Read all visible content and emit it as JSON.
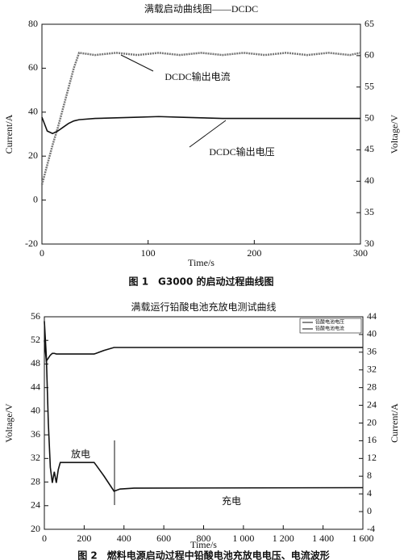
{
  "chart_data": [
    {
      "type": "line",
      "title": "满载启动曲线图——DCDC",
      "caption": "图 1　G3000 的启动过程曲线图",
      "x_label": "Time/s",
      "y_label": "Current/A",
      "y2_label": "Voltage/V",
      "x": [
        0,
        5,
        10,
        15,
        20,
        25,
        30,
        35,
        50,
        70,
        90,
        110,
        130,
        150,
        170,
        190,
        210,
        230,
        250,
        270,
        290,
        300
      ],
      "series": [
        {
          "name": "DCDC输出电流",
          "color": "#777777",
          "values": [
            7,
            16,
            25,
            33,
            42,
            51,
            60,
            67,
            66,
            67,
            66,
            67,
            66,
            67,
            66,
            67,
            66,
            67,
            66,
            67,
            66,
            67
          ]
        },
        {
          "name": "DCDC输出电压",
          "color": "#111111",
          "axis": "y2",
          "values": [
            50.2,
            48,
            47.6,
            48,
            48.6,
            49.2,
            49.6,
            49.8,
            50,
            50.1,
            50.2,
            50.3,
            50.2,
            50.1,
            50,
            50,
            50,
            50,
            50,
            50,
            50,
            50
          ]
        }
      ],
      "xlim": [
        0,
        300
      ],
      "xticks": [
        0,
        100,
        200,
        300
      ],
      "ylim": [
        -20,
        80
      ],
      "yticks": [
        -20,
        0,
        20,
        40,
        60,
        80
      ],
      "y2lim": [
        30,
        65
      ],
      "y2ticks": [
        30,
        35,
        40,
        45,
        50,
        55,
        60,
        65
      ]
    },
    {
      "type": "line",
      "title": "满载运行铅酸电池充放电测试曲线",
      "caption": "图 2　燃料电源启动过程中铅酸电池充放电电压、电流波形",
      "x_label": "Time/s",
      "y_label": "Voltage/V",
      "y2_label": "Current/A",
      "annotations": [
        "放电",
        "充电"
      ],
      "x": [
        0,
        10,
        20,
        30,
        40,
        50,
        60,
        70,
        80,
        250,
        260,
        300,
        350,
        380,
        450,
        1600
      ],
      "series": [
        {
          "name": "铅酸电池电压",
          "color": "#111111",
          "values": [
            52,
            48.5,
            49,
            49.5,
            49.8,
            49.8,
            49.7,
            49.7,
            49.7,
            49.7,
            49.8,
            50.3,
            50.8,
            50.8,
            50.8,
            50.8
          ]
        },
        {
          "name": "铅酸电池电流",
          "color": "#111111",
          "axis": "y2",
          "values": [
            43,
            35,
            20,
            10,
            6.5,
            9,
            6.5,
            9.5,
            11.1,
            11.1,
            10.5,
            8,
            4.6,
            5.1,
            5.3,
            5.4
          ]
        }
      ],
      "xlim": [
        0,
        1600
      ],
      "xticks": [
        0,
        200,
        400,
        600,
        800,
        {
          "value": 1000,
          "label": "1 000"
        },
        {
          "value": 1200,
          "label": "1 200"
        },
        {
          "value": 1400,
          "label": "1 400"
        },
        {
          "value": 1600,
          "label": "1 600"
        }
      ],
      "ylim": [
        20,
        56
      ],
      "yticks": [
        20,
        24,
        28,
        32,
        36,
        40,
        44,
        48,
        52,
        56
      ],
      "y2lim": [
        -4,
        44
      ],
      "y2ticks": [
        -4,
        0,
        4,
        8,
        12,
        16,
        20,
        24,
        28,
        32,
        36,
        40,
        44
      ]
    }
  ]
}
